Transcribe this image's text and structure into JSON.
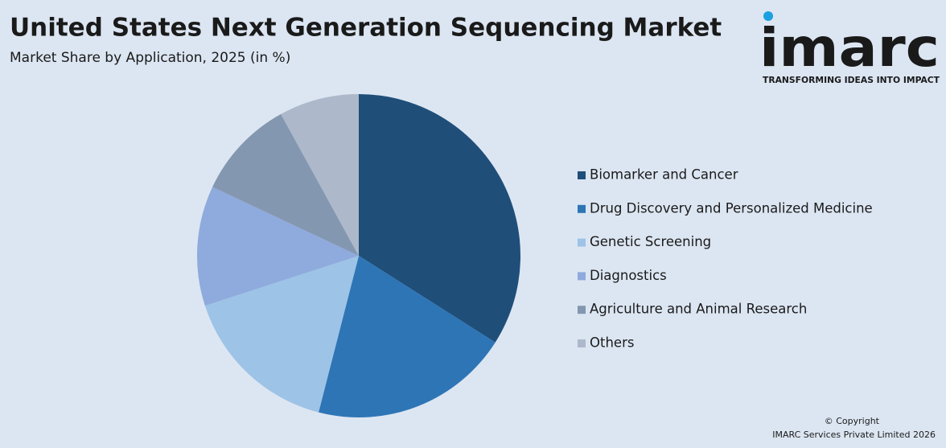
{
  "chart_data": {
    "type": "pie",
    "title": "United States Next Generation Sequencing Market",
    "subtitle": "Market Share by Application, 2025 (in %)",
    "categories": [
      "Biomarker and Cancer",
      "Drug Discovery and Personalized Medicine",
      "Genetic Screening",
      "Diagnostics",
      "Agriculture and Animal Research",
      "Others"
    ],
    "values": [
      34,
      20,
      16,
      12,
      10,
      8
    ],
    "colors": [
      "#1f4e79",
      "#2e75b6",
      "#9dc3e6",
      "#8faadc",
      "#8497b0",
      "#adb9ca"
    ],
    "legend": "right"
  },
  "logo": {
    "name": "imarc",
    "tagline": "TRANSFORMING IDEAS INTO IMPACT"
  },
  "footer": {
    "copyright": "© Copyright",
    "owner": "IMARC Services Private Limited 2026"
  }
}
